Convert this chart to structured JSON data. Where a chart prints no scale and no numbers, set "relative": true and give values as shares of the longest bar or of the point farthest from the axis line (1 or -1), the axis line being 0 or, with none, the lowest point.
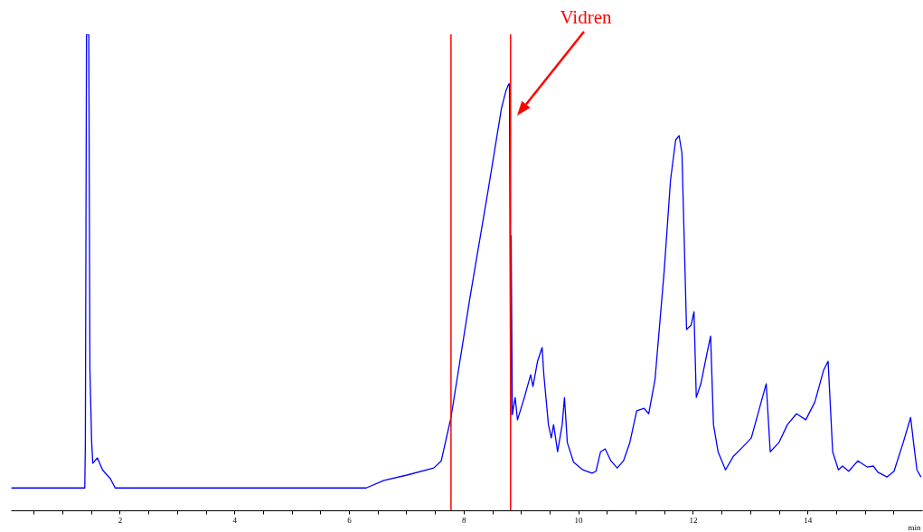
{
  "chart_data": {
    "type": "line",
    "relative": true,
    "xlabel": "min",
    "xlim": [
      0.1,
      16
    ],
    "xticks": [
      {
        "value": 0.5,
        "label": null
      },
      {
        "value": 1,
        "label": null
      },
      {
        "value": 1.5,
        "label": null
      },
      2,
      {
        "value": 2.5,
        "label": null
      },
      {
        "value": 3,
        "label": null
      },
      {
        "value": 3.5,
        "label": null
      },
      4,
      {
        "value": 4.5,
        "label": null
      },
      {
        "value": 5,
        "label": null
      },
      {
        "value": 5.5,
        "label": null
      },
      6,
      {
        "value": 6.5,
        "label": null
      },
      {
        "value": 7,
        "label": null
      },
      {
        "value": 7.5,
        "label": null
      },
      8,
      {
        "value": 8.5,
        "label": null
      },
      {
        "value": 9,
        "label": null
      },
      {
        "value": 9.5,
        "label": null
      },
      10,
      {
        "value": 10.5,
        "label": null
      },
      {
        "value": 11,
        "label": null
      },
      {
        "value": 11.5,
        "label": null
      },
      12,
      {
        "value": 12.5,
        "label": null
      },
      {
        "value": 13,
        "label": null
      },
      {
        "value": 13.5,
        "label": null
      },
      14,
      {
        "value": 14.5,
        "label": null
      },
      {
        "value": 15,
        "label": null
      },
      {
        "value": 15.5,
        "label": null
      }
    ],
    "x": [
      0.11,
      1.39,
      1.4,
      1.42,
      1.46,
      1.48,
      1.51,
      1.53,
      1.61,
      1.7,
      1.84,
      1.92,
      6.3,
      6.61,
      7.01,
      7.48,
      7.61,
      7.78,
      8.11,
      8.43,
      8.66,
      8.74,
      8.79,
      8.8,
      8.82,
      8.83,
      8.85,
      8.9,
      8.94,
      9.06,
      9.17,
      9.21,
      9.29,
      9.37,
      9.4,
      9.48,
      9.53,
      9.57,
      9.64,
      9.72,
      9.76,
      9.81,
      9.92,
      10.08,
      10.24,
      10.31,
      10.39,
      10.47,
      10.57,
      10.68,
      10.79,
      10.9,
      11.02,
      11.15,
      11.23,
      11.34,
      11.5,
      11.61,
      11.7,
      11.76,
      11.81,
      11.89,
      11.97,
      12.02,
      12.06,
      12.14,
      12.25,
      12.31,
      12.36,
      12.44,
      12.57,
      12.71,
      12.87,
      13.02,
      13.15,
      13.28,
      13.35,
      13.5,
      13.65,
      13.81,
      13.97,
      14.13,
      14.28,
      14.36,
      14.44,
      14.54,
      14.61,
      14.72,
      14.88,
      15.04,
      15.15,
      15.23,
      15.39,
      15.51,
      15.67,
      15.8,
      15.86,
      15.91,
      15.98
    ],
    "series": [
      {
        "color": "#0000ff",
        "values": [
          0.047,
          0.047,
          0.142,
          1.0,
          1.0,
          0.294,
          0.144,
          0.099,
          0.11,
          0.085,
          0.066,
          0.047,
          0.047,
          0.063,
          0.074,
          0.089,
          0.104,
          0.195,
          0.446,
          0.674,
          0.844,
          0.882,
          0.896,
          0.896,
          0.201,
          0.577,
          0.201,
          0.237,
          0.19,
          0.237,
          0.285,
          0.26,
          0.313,
          0.342,
          0.285,
          0.18,
          0.152,
          0.18,
          0.123,
          0.18,
          0.237,
          0.142,
          0.101,
          0.085,
          0.078,
          0.082,
          0.123,
          0.129,
          0.104,
          0.089,
          0.104,
          0.142,
          0.209,
          0.214,
          0.203,
          0.275,
          0.503,
          0.693,
          0.778,
          0.787,
          0.75,
          0.38,
          0.389,
          0.417,
          0.237,
          0.266,
          0.332,
          0.366,
          0.18,
          0.123,
          0.085,
          0.114,
          0.133,
          0.152,
          0.209,
          0.266,
          0.123,
          0.142,
          0.18,
          0.203,
          0.19,
          0.228,
          0.294,
          0.313,
          0.123,
          0.085,
          0.093,
          0.082,
          0.104,
          0.091,
          0.093,
          0.08,
          0.07,
          0.082,
          0.142,
          0.195,
          0.133,
          0.085,
          0.07
        ]
      }
    ],
    "ref_lines": [
      {
        "axis": "x",
        "value": 7.78,
        "color": "#ff0000"
      },
      {
        "axis": "x",
        "value": 8.82,
        "color": "#ff0000"
      }
    ],
    "annotations": [
      "Vidren"
    ],
    "grid": false,
    "legend": false
  }
}
